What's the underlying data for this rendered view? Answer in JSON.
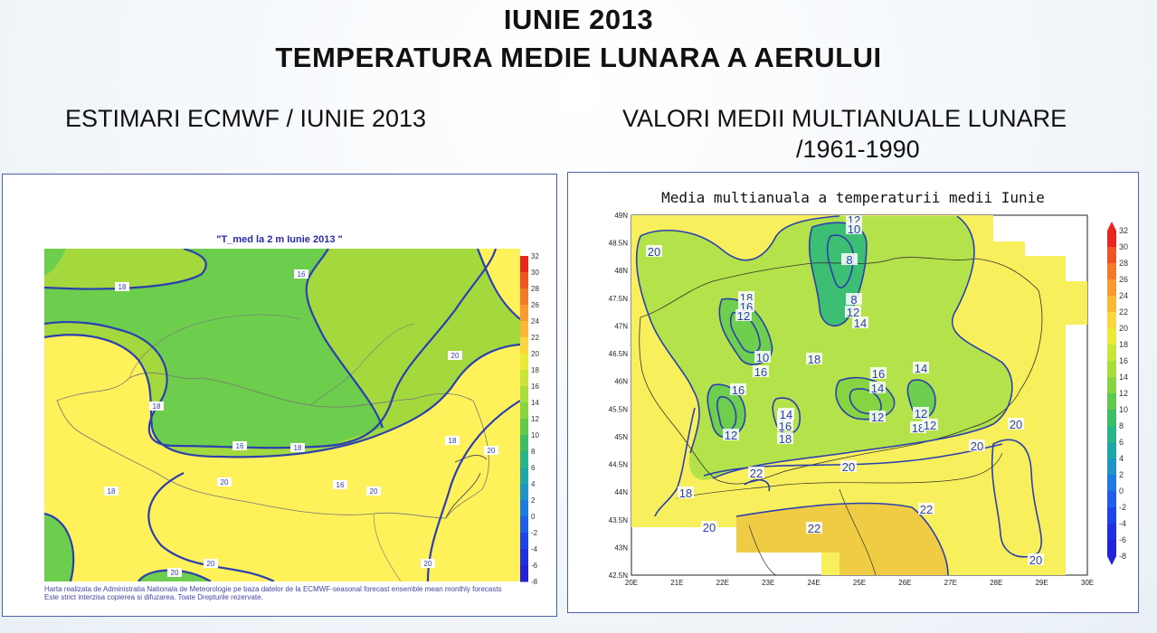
{
  "header": {
    "title_line1": "IUNIE 2013",
    "title_line2": "TEMPERATURA MEDIE LUNARA A AERULUI"
  },
  "left_panel": {
    "caption": "ESTIMARI ECMWF / IUNIE 2013",
    "map_title": "\"T_med la 2 m Iunie 2013 \"",
    "note_line1": "Harta realizata de Administratia Nationala de Meteorologie pe baza datelor de la ECMWF-seasonal forecast ensemble mean monthly forecasts",
    "note_line2": "Este strict interzisa copierea si difuzarea. Toate Drepturile rezervate.",
    "contour_labels": [
      "18",
      "16",
      "16",
      "18",
      "18",
      "16",
      "18",
      "20",
      "20",
      "20",
      "20",
      "20",
      "20",
      "20",
      "18"
    ]
  },
  "right_panel": {
    "caption_line1": "VALORI MEDII MULTIANUALE LUNARE",
    "caption_line2": "/1961-1990",
    "map_title": "Media multianuala a temperaturii medii Iunie",
    "lat_labels": [
      "49N",
      "48.5N",
      "48N",
      "47.5N",
      "47N",
      "46.5N",
      "46N",
      "45.5N",
      "45N",
      "44.5N",
      "44N",
      "43.5N",
      "43N",
      "42.5N"
    ],
    "lon_labels": [
      "20E",
      "21E",
      "22E",
      "23E",
      "24E",
      "25E",
      "26E",
      "27E",
      "28E",
      "29E",
      "30E"
    ],
    "contour_labels": [
      "12",
      "10",
      "8",
      "8",
      "12",
      "14",
      "18",
      "16",
      "12",
      "10",
      "16",
      "18",
      "16",
      "14",
      "12",
      "14",
      "16",
      "18",
      "16",
      "14",
      "12",
      "14",
      "12",
      "18",
      "12",
      "20",
      "20",
      "20",
      "18",
      "22",
      "20",
      "22",
      "22",
      "20",
      "20"
    ]
  },
  "color_scale": {
    "labels": [
      "32",
      "30",
      "28",
      "26",
      "24",
      "22",
      "20",
      "18",
      "16",
      "14",
      "12",
      "10",
      "8",
      "6",
      "4",
      "2",
      "0",
      "-2",
      "-4",
      "-6",
      "-8"
    ],
    "colors": [
      "#e8261c",
      "#ef5524",
      "#f4792a",
      "#f89a31",
      "#fbb737",
      "#fbd640",
      "#e9ea3a",
      "#c9e43a",
      "#a9dd3d",
      "#86d442",
      "#5ec94d",
      "#3cbd68",
      "#2ab48a",
      "#1ea7a6",
      "#1e95c6",
      "#1e7be0",
      "#1e5ee8",
      "#1e44e8",
      "#2030e0",
      "#2222d8"
    ]
  }
}
